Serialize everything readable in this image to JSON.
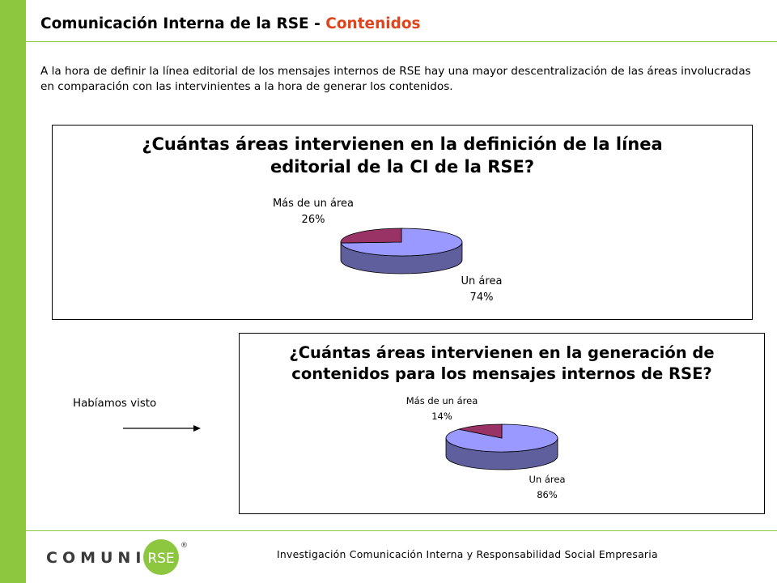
{
  "header": {
    "title_main": "Comunicación Interna de la RSE - ",
    "title_accent": "Contenidos"
  },
  "intro_text": "A la hora de definir la línea editorial de los mensajes internos de RSE hay una mayor descentralización de las áreas involucradas en comparación con las intervinientes a la hora de generar los contenidos.",
  "side_note": "Habíamos visto",
  "footer": {
    "text": "Investigación  Comunicación  Interna  y Responsabilidad  Social Empresaria",
    "logo_text": "COMUNICA",
    "logo_badge": "RSE",
    "logo_mark": "®"
  },
  "colors": {
    "bar": "#8dc63f",
    "accent": "#e0441c",
    "slice_main": "#9999ff",
    "slice_main_side": "#5f5f9e",
    "slice_minor": "#993366",
    "slice_minor_side": "#662244"
  },
  "chart_data": [
    {
      "type": "pie",
      "title_line1": "¿Cuántas áreas intervienen en la definición de la línea",
      "title_line2": "editorial de la CI de la RSE?",
      "categories": [
        "Más de un área",
        "Un área"
      ],
      "values": [
        26,
        74
      ],
      "value_labels": [
        "26%",
        "74%"
      ],
      "three_d": true
    },
    {
      "type": "pie",
      "title_line1": "¿Cuántas áreas intervienen en la generación de",
      "title_line2": "contenidos para los mensajes internos de RSE?",
      "categories": [
        "Más de un área",
        "Un área"
      ],
      "values": [
        14,
        86
      ],
      "value_labels": [
        "14%",
        "86%"
      ],
      "three_d": true
    }
  ]
}
